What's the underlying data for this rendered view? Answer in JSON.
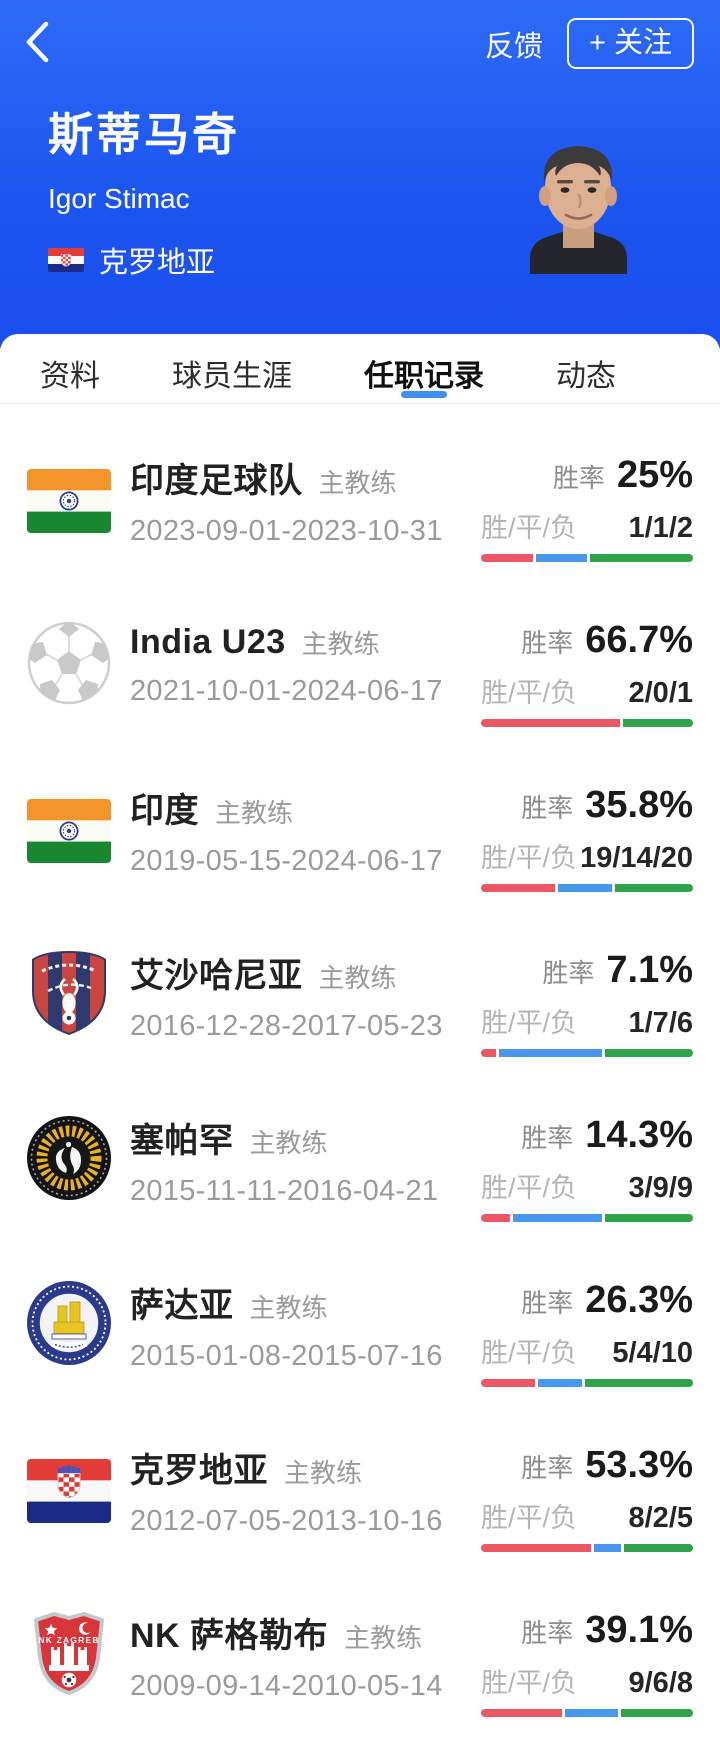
{
  "colors": {
    "header_blue": "#1d55f0",
    "tab_underline": "#3f8ff2",
    "win": "#ec5766",
    "draw": "#4897ec",
    "loss": "#31a24c"
  },
  "header": {
    "feedback_label": "反馈",
    "follow_label": "+ 关注",
    "name_cn": "斯蒂马奇",
    "name_en": "Igor Stimac",
    "nationality": "克罗地亚"
  },
  "tabs": [
    {
      "key": "profile",
      "label": "资料",
      "active": false
    },
    {
      "key": "player-career",
      "label": "球员生涯",
      "active": false
    },
    {
      "key": "coaching-record",
      "label": "任职记录",
      "active": true
    },
    {
      "key": "news",
      "label": "动态",
      "active": false
    }
  ],
  "stats_labels": {
    "win_rate": "胜率",
    "wdl": "胜/平/负"
  },
  "records": [
    {
      "team": "印度足球队",
      "role": "主教练",
      "period": "2023-09-01-2023-10-31",
      "win_rate": "25%",
      "wdl": "1/1/2",
      "w": 1,
      "d": 1,
      "l": 2,
      "logo": "india-flag"
    },
    {
      "team": "India U23",
      "role": "主教练",
      "period": "2021-10-01-2024-06-17",
      "win_rate": "66.7%",
      "wdl": "2/0/1",
      "w": 2,
      "d": 0,
      "l": 1,
      "logo": "football"
    },
    {
      "team": "印度",
      "role": "主教练",
      "period": "2019-05-15-2024-06-17",
      "win_rate": "35.8%",
      "wdl": "19/14/20",
      "w": 19,
      "d": 14,
      "l": 20,
      "logo": "india-flag"
    },
    {
      "team": "艾沙哈尼亚",
      "role": "主教练",
      "period": "2016-12-28-2017-05-23",
      "win_rate": "7.1%",
      "wdl": "1/7/6",
      "w": 1,
      "d": 7,
      "l": 6,
      "logo": "alshahania-crest"
    },
    {
      "team": "塞帕罕",
      "role": "主教练",
      "period": "2015-11-11-2016-04-21",
      "win_rate": "14.3%",
      "wdl": "3/9/9",
      "w": 3,
      "d": 9,
      "l": 9,
      "logo": "sepahan-crest"
    },
    {
      "team": "萨达亚",
      "role": "主教练",
      "period": "2015-01-08-2015-07-16",
      "win_rate": "26.3%",
      "wdl": "5/4/10",
      "w": 5,
      "d": 4,
      "l": 10,
      "logo": "zadar-crest"
    },
    {
      "team": "克罗地亚",
      "role": "主教练",
      "period": "2012-07-05-2013-10-16",
      "win_rate": "53.3%",
      "wdl": "8/2/5",
      "w": 8,
      "d": 2,
      "l": 5,
      "logo": "croatia-flag"
    },
    {
      "team": "NK 萨格勒布",
      "role": "主教练",
      "period": "2009-09-14-2010-05-14",
      "win_rate": "39.1%",
      "wdl": "9/6/8",
      "w": 9,
      "d": 6,
      "l": 8,
      "logo": "zagreb-crest",
      "logo_text": "NK ZAGREB"
    }
  ]
}
